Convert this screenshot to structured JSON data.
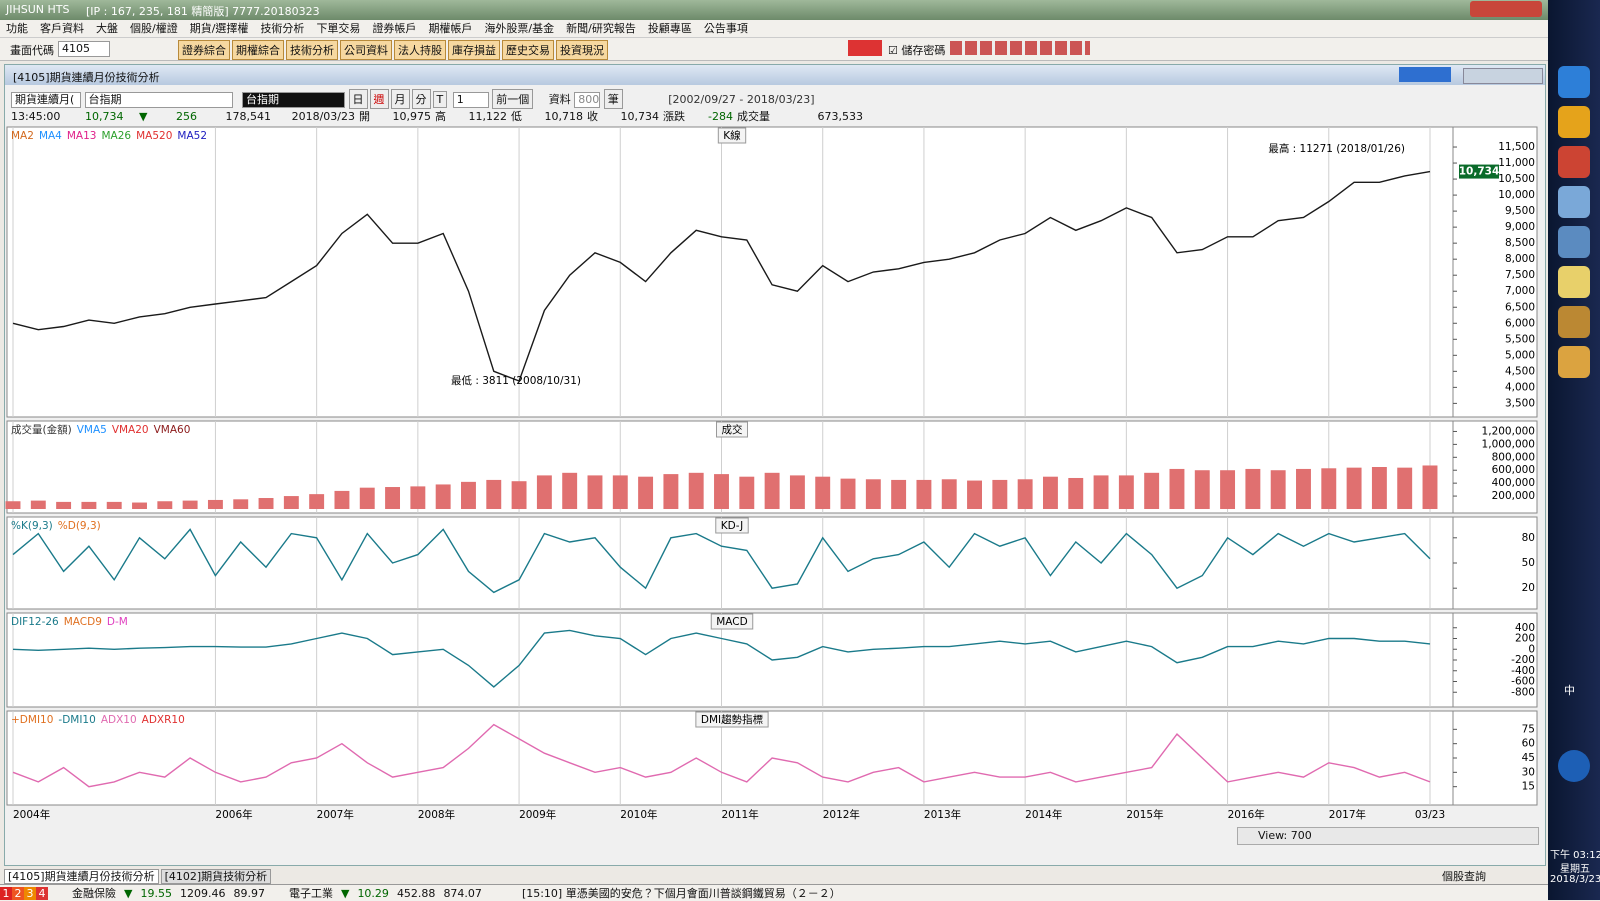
{
  "window": {
    "title": "JIHSUN HTS",
    "subtitle": "[IP : 167, 235, 181 精簡版] 7777.20180323"
  },
  "menu": [
    "功能",
    "客戶資料",
    "大盤",
    "個股/權證",
    "期貨/選擇權",
    "技術分析",
    "下單交易",
    "證券帳戶",
    "期權帳戶",
    "海外股票/基金",
    "新聞/研究報告",
    "投顧專區",
    "公告事項"
  ],
  "toolbar": {
    "code_label": "畫面代碼",
    "code": "4105",
    "buttons": [
      "證券綜合",
      "期權綜合",
      "技術分析",
      "公司資料",
      "法人持股",
      "庫存損益",
      "歷史交易",
      "投資現況"
    ],
    "save_password": "儲存密碼"
  },
  "subwindow": {
    "title": "[4105]期貨連續月份技術分析"
  },
  "controls": {
    "contract": "期貨連續月(",
    "product": "台指期",
    "selected": "台指期",
    "periods": [
      "日",
      "週",
      "月",
      "分",
      "T"
    ],
    "interval": "1",
    "prev": "前一個",
    "data_label": "資料",
    "count": "800",
    "count_unit": "筆",
    "range": "[2002/09/27 - 2018/03/23]"
  },
  "quote": {
    "time": "13:45:00",
    "last": "10,734",
    "arrow": "▼",
    "change": "256",
    "volume": "178,541",
    "date": "2018/03/23",
    "open_label": "開",
    "open": "10,975",
    "high_label": "高",
    "high": "11,122",
    "low_label": "低",
    "low": "10,718",
    "close_label": "收",
    "close": "10,734",
    "chg_label": "漲跌",
    "chg": "-284",
    "vol_label": "成交量",
    "vol": "673,533"
  },
  "chart_data": [
    {
      "type": "line",
      "title": "K線",
      "color": "#1a1a1a",
      "legend": [
        {
          "name": "MA2",
          "color": "#d2691e"
        },
        {
          "name": "MA4",
          "color": "#1e90ff"
        },
        {
          "name": "MA13",
          "color": "#e0218a"
        },
        {
          "name": "MA26",
          "color": "#2ca02c"
        },
        {
          "name": "MA520",
          "color": "#e03030"
        },
        {
          "name": "MA52",
          "color": "#2020c0"
        }
      ],
      "annotations": [
        "最高 : 11271 (2018/01/26)",
        "最低 : 3811 (2008/10/31)"
      ],
      "last_label": "10,734",
      "values": [
        6000,
        5800,
        5900,
        6100,
        6000,
        6200,
        6300,
        6500,
        6600,
        6700,
        6800,
        7300,
        7800,
        8800,
        9400,
        8500,
        8500,
        8800,
        7000,
        4500,
        4200,
        6400,
        7500,
        8200,
        7900,
        7300,
        8200,
        8900,
        8700,
        8600,
        7200,
        7000,
        7800,
        7300,
        7600,
        7700,
        7900,
        8000,
        8200,
        8600,
        8800,
        9300,
        8900,
        9200,
        9600,
        9300,
        8200,
        8300,
        8700,
        8700,
        9200,
        9300,
        9800,
        10400,
        10400,
        10600,
        10734
      ],
      "ylim": [
        3200,
        12000
      ],
      "yticks": [
        {
          "value": 3500,
          "label": "3,500"
        },
        {
          "value": 4000,
          "label": "4,000"
        },
        {
          "value": 4500,
          "label": "4,500"
        },
        {
          "value": 5000,
          "label": "5,000"
        },
        {
          "value": 5500,
          "label": "5,500"
        },
        {
          "value": 6000,
          "label": "6,000"
        },
        {
          "value": 6500,
          "label": "6,500"
        },
        {
          "value": 7000,
          "label": "7,000"
        },
        {
          "value": 7500,
          "label": "7,500"
        },
        {
          "value": 8000,
          "label": "8,000"
        },
        {
          "value": 8500,
          "label": "8,500"
        },
        {
          "value": 9000,
          "label": "9,000"
        },
        {
          "value": 9500,
          "label": "9,500"
        },
        {
          "value": 10000,
          "label": "10,000"
        },
        {
          "value": 10500,
          "label": "10,500"
        },
        {
          "value": 11000,
          "label": "11,000"
        },
        {
          "value": 11500,
          "label": "11,500"
        }
      ]
    },
    {
      "type": "bar",
      "title": "成交",
      "color": "#e07070",
      "legend": [
        {
          "name": "成交量(金額)",
          "color": "#333333"
        },
        {
          "name": "VMA5",
          "color": "#1e90ff"
        },
        {
          "name": "VMA20",
          "color": "#e03030"
        },
        {
          "name": "VMA60",
          "color": "#8b1a1a"
        }
      ],
      "values": [
        120000,
        130000,
        110000,
        110000,
        110000,
        100000,
        120000,
        130000,
        140000,
        150000,
        170000,
        200000,
        230000,
        280000,
        330000,
        340000,
        350000,
        380000,
        420000,
        450000,
        430000,
        520000,
        560000,
        520000,
        520000,
        500000,
        540000,
        560000,
        540000,
        500000,
        560000,
        520000,
        500000,
        470000,
        460000,
        450000,
        450000,
        460000,
        440000,
        450000,
        460000,
        500000,
        480000,
        520000,
        520000,
        560000,
        620000,
        600000,
        600000,
        620000,
        600000,
        620000,
        630000,
        640000,
        650000,
        640000,
        673533
      ],
      "ylim": [
        0,
        1300000
      ],
      "yticks": [
        {
          "value": 200000,
          "label": "200,000"
        },
        {
          "value": 400000,
          "label": "400,000"
        },
        {
          "value": 600000,
          "label": "600,000"
        },
        {
          "value": 800000,
          "label": "800,000"
        },
        {
          "value": 1000000,
          "label": "1,000,000"
        },
        {
          "value": 1200000,
          "label": "1,200,000"
        }
      ]
    },
    {
      "type": "line",
      "title": "KD-J",
      "color": "#1a7a8a",
      "legend": [
        {
          "name": "%K(9,3)",
          "color": "#1a7a8a"
        },
        {
          "name": "%D(9,3)",
          "color": "#e07020"
        }
      ],
      "values": [
        60,
        85,
        40,
        70,
        30,
        80,
        55,
        90,
        35,
        75,
        45,
        85,
        80,
        30,
        85,
        50,
        60,
        90,
        40,
        15,
        30,
        85,
        75,
        80,
        45,
        20,
        80,
        85,
        70,
        65,
        20,
        25,
        80,
        40,
        55,
        60,
        75,
        45,
        85,
        70,
        80,
        35,
        75,
        50,
        85,
        60,
        20,
        35,
        80,
        60,
        85,
        70,
        85,
        75,
        80,
        85,
        55
      ],
      "ylim": [
        0,
        100
      ],
      "yticks": [
        20,
        50,
        80
      ]
    },
    {
      "type": "line",
      "title": "MACD",
      "color": "#1a7a8a",
      "legend": [
        {
          "name": "DIF12-26",
          "color": "#1a7a8a"
        },
        {
          "name": "MACD9",
          "color": "#e07020"
        },
        {
          "name": "D-M",
          "color": "#e040c0"
        }
      ],
      "values": [
        0,
        -20,
        0,
        20,
        0,
        20,
        30,
        50,
        50,
        40,
        40,
        100,
        200,
        300,
        200,
        -100,
        -50,
        0,
        -300,
        -700,
        -300,
        300,
        350,
        250,
        200,
        -100,
        200,
        300,
        200,
        100,
        -200,
        -150,
        50,
        -50,
        0,
        20,
        50,
        50,
        100,
        150,
        100,
        150,
        -50,
        50,
        150,
        50,
        -250,
        -150,
        50,
        50,
        150,
        100,
        200,
        200,
        150,
        150,
        100
      ],
      "ylim": [
        -1000,
        600
      ],
      "yticks": [
        400,
        200,
        0,
        -200,
        -400,
        -600,
        -800
      ]
    },
    {
      "type": "line",
      "title": "DMI趨勢指標",
      "color": "#e06ab0",
      "legend": [
        {
          "name": "+DMI10",
          "color": "#e07020"
        },
        {
          "name": "-DMI10",
          "color": "#1a7a8a"
        },
        {
          "name": "ADX10",
          "color": "#e06ab0"
        },
        {
          "name": "ADXR10",
          "color": "#e03030"
        }
      ],
      "values": [
        30,
        20,
        35,
        15,
        20,
        30,
        25,
        45,
        30,
        20,
        25,
        40,
        45,
        60,
        40,
        25,
        30,
        35,
        55,
        80,
        65,
        50,
        40,
        30,
        35,
        25,
        30,
        45,
        30,
        20,
        45,
        40,
        25,
        20,
        30,
        35,
        20,
        25,
        30,
        25,
        25,
        30,
        20,
        25,
        30,
        35,
        70,
        45,
        20,
        25,
        30,
        25,
        40,
        35,
        25,
        30,
        20
      ],
      "ylim": [
        0,
        90
      ],
      "yticks": [
        15,
        30,
        45,
        60,
        75
      ]
    }
  ],
  "xaxis": [
    "2004年",
    "2006年",
    "2007年",
    "2008年",
    "2009年",
    "2010年",
    "2011年",
    "2012年",
    "2013年",
    "2014年",
    "2015年",
    "2016年",
    "2017年",
    "03/23"
  ],
  "view": "View: 700",
  "tabs": [
    "[4105]期貨連續月份技術分析",
    "[4102]期貨技術分析"
  ],
  "stock_query": "個股查詢",
  "ticker": {
    "pages": [
      "1",
      "2",
      "3",
      "4"
    ],
    "items": [
      {
        "name": "金融保險",
        "arrow": "▼",
        "change": "19.55",
        "index": "1209.46",
        "amount": "89.97"
      },
      {
        "name": "電子工業",
        "arrow": "▼",
        "change": "10.29",
        "index": "452.88",
        "amount": "874.07"
      }
    ],
    "news": "[15:10] 單憑美國的安危？下個月會面川普談鋼鐵貿易（２－２）"
  },
  "taskbar": {
    "ime": "中",
    "time": "下午 03:12",
    "weekday": "星期五",
    "date": "2018/3/23"
  }
}
